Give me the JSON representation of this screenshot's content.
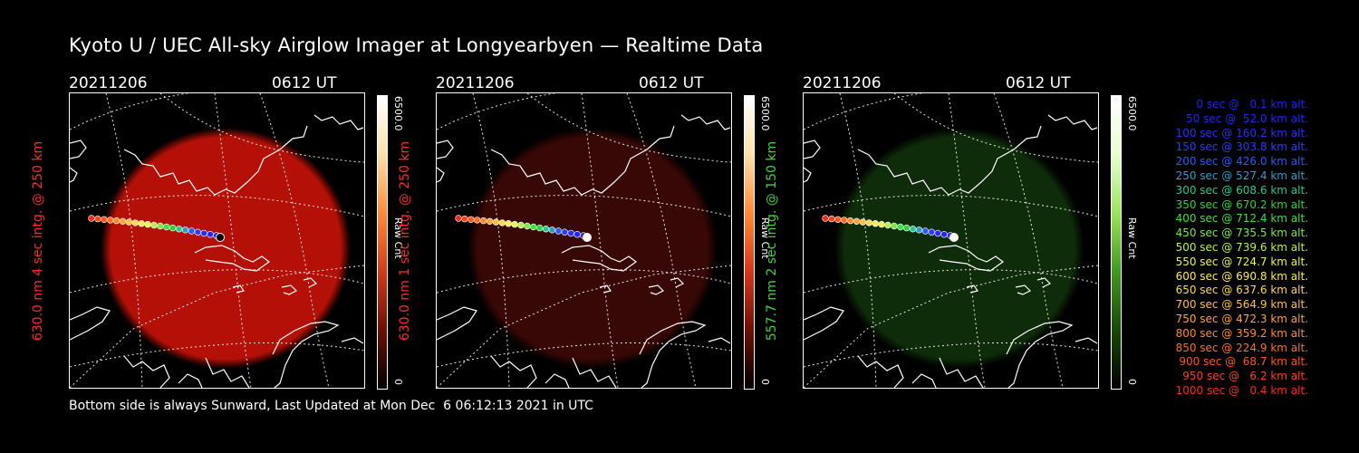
{
  "title": "Kyoto U / UEC All-sky Airglow Imager at Longyearbyen — Realtime Data",
  "footer": "Bottom side is always Sunward, Last Updated at Mon Dec  6 06:12:13 2021 in UTC",
  "panels": [
    {
      "date": "20211206",
      "time": "0612 UT",
      "side_label": "630.0 nm 4 sec intg. @ 250 km",
      "side_color": "#ff2a2a",
      "colorbar_max": "6500.0",
      "colorbar_min": "0",
      "colorbar_unit": "Raw Cnt",
      "colorbar_colors": [
        "#ffffff",
        "#ffe0a8",
        "#ff8a3a",
        "#d23a18",
        "#6b1006",
        "#000000"
      ],
      "glow_color": "#c41208",
      "glow_opacity": 0.92,
      "track_end": "#000000"
    },
    {
      "date": "20211206",
      "time": "0612 UT",
      "side_label": "630.0 nm 1 sec intg. @ 250 km",
      "side_color": "#ff2a2a",
      "colorbar_max": "6500.0",
      "colorbar_min": "0",
      "colorbar_unit": "Raw Cnt",
      "colorbar_colors": [
        "#ffffff",
        "#ffe0a8",
        "#ff8a3a",
        "#d23a18",
        "#6b1006",
        "#000000"
      ],
      "glow_color": "#3a0805",
      "glow_opacity": 0.95,
      "track_end": "#ffffff"
    },
    {
      "date": "20211206",
      "time": "0612 UT",
      "side_label": "557.7 nm 2 sec intg. @ 150 km",
      "side_color": "#3fd33f",
      "colorbar_max": "6500.0",
      "colorbar_min": "0",
      "colorbar_unit": "Raw Cnt",
      "colorbar_colors": [
        "#ffffff",
        "#e6ffd0",
        "#98e65a",
        "#3f9a1f",
        "#164a08",
        "#000000"
      ],
      "glow_color": "#0f2e0a",
      "glow_opacity": 0.95,
      "track_end": "#ffffff"
    }
  ],
  "legend": [
    {
      "text": "0 sec @   0.1 km alt.",
      "color": "#2020ff"
    },
    {
      "text": "50 sec @  52.0 km alt.",
      "color": "#2424ff"
    },
    {
      "text": "100 sec @ 160.2 km alt.",
      "color": "#2b2bff"
    },
    {
      "text": "150 sec @ 303.8 km alt.",
      "color": "#2c3cff"
    },
    {
      "text": "200 sec @ 426.0 km alt.",
      "color": "#2c5aff"
    },
    {
      "text": "250 sec @ 527.4 km alt.",
      "color": "#2aa0c8"
    },
    {
      "text": "300 sec @ 608.6 km alt.",
      "color": "#28c890"
    },
    {
      "text": "350 sec @ 670.2 km alt.",
      "color": "#2fd23a"
    },
    {
      "text": "400 sec @ 712.4 km alt.",
      "color": "#40e040"
    },
    {
      "text": "450 sec @ 735.5 km alt.",
      "color": "#7ae84a"
    },
    {
      "text": "500 sec @ 739.6 km alt.",
      "color": "#b8f050"
    },
    {
      "text": "550 sec @ 724.7 km alt.",
      "color": "#e6f55a"
    },
    {
      "text": "600 sec @ 690.8 km alt.",
      "color": "#ffeb58"
    },
    {
      "text": "650 sec @ 637.6 km alt.",
      "color": "#ffd94c"
    },
    {
      "text": "700 sec @ 564.9 km alt.",
      "color": "#ffc040"
    },
    {
      "text": "750 sec @ 472.3 km alt.",
      "color": "#ffa436"
    },
    {
      "text": "800 sec @ 359.2 km alt.",
      "color": "#ff8a2e"
    },
    {
      "text": "850 sec @ 224.9 km alt.",
      "color": "#ff6e28"
    },
    {
      "text": "900 sec @  68.7 km alt.",
      "color": "#ff5522"
    },
    {
      "text": "950 sec @   6.2 km alt.",
      "color": "#ff401c"
    },
    {
      "text": "1000 sec @   0.4 km alt.",
      "color": "#ff2a18"
    }
  ]
}
